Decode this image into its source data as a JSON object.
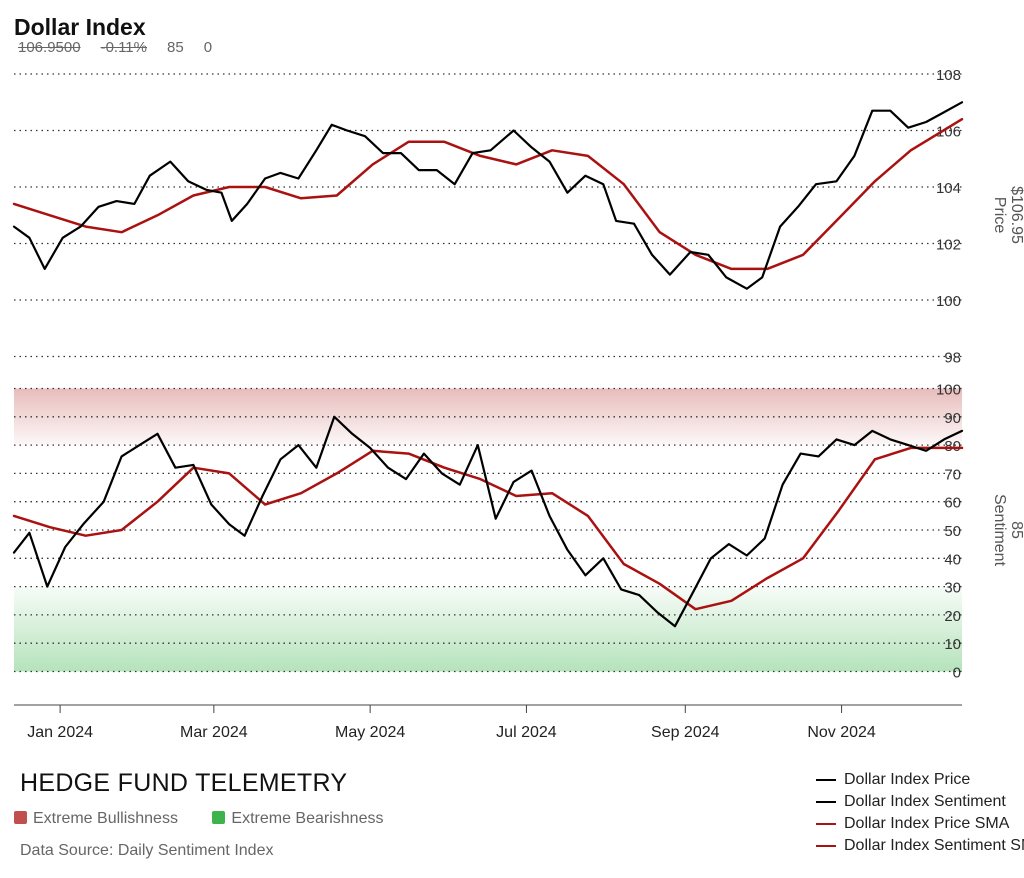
{
  "header": {
    "title": "Dollar Index",
    "price": "106.9500",
    "change": "-0.11%",
    "sentiment": "85",
    "extra": "0"
  },
  "footer": {
    "brand": "HEDGE FUND TELEMETRY",
    "zone_bull": "Extreme Bullishness",
    "zone_bear": "Extreme Bearishness",
    "source": "Data Source: Daily Sentiment Index"
  },
  "colors": {
    "price": "#000000",
    "sma": "#aa1111",
    "bull_zone": "#c0504d",
    "bear_zone": "#3cb44b",
    "grid": "#333333"
  },
  "chart_data": {
    "type": "line",
    "x_ticks": [
      "Jan 2024",
      "Mar 2024",
      "May 2024",
      "Jul 2024",
      "Sep 2024",
      "Nov 2024"
    ],
    "legend": [
      {
        "label": "Dollar Index Price",
        "color": "#000000"
      },
      {
        "label": "Dollar Index Sentiment",
        "color": "#000000"
      },
      {
        "label": "Dollar Index Price SMA",
        "color": "#aa1111"
      },
      {
        "label": "Dollar Index Sentiment SMA",
        "color": "#aa1111"
      }
    ],
    "panels": [
      {
        "name": "price",
        "axis_label": "Price",
        "axis_value": "$106.95",
        "ylim": [
          98,
          108.5
        ],
        "ticks": [
          98,
          100,
          102,
          104,
          106,
          108
        ],
        "price": [
          [
            "2023-12-14",
            102.6
          ],
          [
            "2023-12-20",
            102.2
          ],
          [
            "2023-12-26",
            101.1
          ],
          [
            "2024-01-02",
            102.2
          ],
          [
            "2024-01-09",
            102.6
          ],
          [
            "2024-01-16",
            103.3
          ],
          [
            "2024-01-23",
            103.5
          ],
          [
            "2024-01-30",
            103.4
          ],
          [
            "2024-02-05",
            104.4
          ],
          [
            "2024-02-13",
            104.9
          ],
          [
            "2024-02-20",
            104.2
          ],
          [
            "2024-02-27",
            103.9
          ],
          [
            "2024-03-04",
            103.8
          ],
          [
            "2024-03-08",
            102.8
          ],
          [
            "2024-03-14",
            103.4
          ],
          [
            "2024-03-21",
            104.3
          ],
          [
            "2024-03-27",
            104.5
          ],
          [
            "2024-04-03",
            104.3
          ],
          [
            "2024-04-10",
            105.3
          ],
          [
            "2024-04-16",
            106.2
          ],
          [
            "2024-04-22",
            106.0
          ],
          [
            "2024-04-29",
            105.8
          ],
          [
            "2024-05-06",
            105.2
          ],
          [
            "2024-05-13",
            105.2
          ],
          [
            "2024-05-20",
            104.6
          ],
          [
            "2024-05-27",
            104.6
          ],
          [
            "2024-06-03",
            104.1
          ],
          [
            "2024-06-10",
            105.2
          ],
          [
            "2024-06-17",
            105.3
          ],
          [
            "2024-06-26",
            106.0
          ],
          [
            "2024-07-03",
            105.4
          ],
          [
            "2024-07-10",
            104.9
          ],
          [
            "2024-07-17",
            103.8
          ],
          [
            "2024-07-24",
            104.4
          ],
          [
            "2024-07-31",
            104.1
          ],
          [
            "2024-08-05",
            102.8
          ],
          [
            "2024-08-12",
            102.7
          ],
          [
            "2024-08-19",
            101.6
          ],
          [
            "2024-08-26",
            100.9
          ],
          [
            "2024-09-03",
            101.7
          ],
          [
            "2024-09-10",
            101.6
          ],
          [
            "2024-09-17",
            100.8
          ],
          [
            "2024-09-25",
            100.4
          ],
          [
            "2024-10-01",
            100.8
          ],
          [
            "2024-10-08",
            102.6
          ],
          [
            "2024-10-15",
            103.3
          ],
          [
            "2024-10-22",
            104.1
          ],
          [
            "2024-10-30",
            104.2
          ],
          [
            "2024-11-06",
            105.1
          ],
          [
            "2024-11-13",
            106.7
          ],
          [
            "2024-11-20",
            106.7
          ],
          [
            "2024-11-27",
            106.1
          ],
          [
            "2024-12-04",
            106.3
          ],
          [
            "2024-12-10",
            106.6
          ],
          [
            "2024-12-18",
            107.0
          ]
        ],
        "sma": [
          [
            "2023-12-14",
            103.4
          ],
          [
            "2023-12-28",
            103.0
          ],
          [
            "2024-01-11",
            102.6
          ],
          [
            "2024-01-25",
            102.4
          ],
          [
            "2024-02-08",
            103.0
          ],
          [
            "2024-02-22",
            103.7
          ],
          [
            "2024-03-07",
            104.0
          ],
          [
            "2024-03-21",
            104.0
          ],
          [
            "2024-04-04",
            103.6
          ],
          [
            "2024-04-18",
            103.7
          ],
          [
            "2024-05-02",
            104.8
          ],
          [
            "2024-05-16",
            105.6
          ],
          [
            "2024-05-30",
            105.6
          ],
          [
            "2024-06-13",
            105.1
          ],
          [
            "2024-06-27",
            104.8
          ],
          [
            "2024-07-11",
            105.3
          ],
          [
            "2024-07-25",
            105.1
          ],
          [
            "2024-08-08",
            104.1
          ],
          [
            "2024-08-22",
            102.4
          ],
          [
            "2024-09-05",
            101.6
          ],
          [
            "2024-09-19",
            101.1
          ],
          [
            "2024-10-03",
            101.1
          ],
          [
            "2024-10-17",
            101.6
          ],
          [
            "2024-10-31",
            102.9
          ],
          [
            "2024-11-14",
            104.2
          ],
          [
            "2024-11-28",
            105.3
          ],
          [
            "2024-12-18",
            106.4
          ]
        ]
      },
      {
        "name": "sentiment",
        "axis_label": "Sentiment",
        "axis_value": "85",
        "ylim": [
          -2,
          100
        ],
        "ticks": [
          0,
          10,
          20,
          30,
          40,
          50,
          60,
          70,
          80,
          90,
          100
        ],
        "zones": [
          {
            "range": [
              80,
              100
            ],
            "color": "#c0504d",
            "label": "Extreme Bullishness"
          },
          {
            "range": [
              0,
              30
            ],
            "color": "#3cb44b",
            "label": "Extreme Bearishness"
          }
        ],
        "sentiment": [
          [
            "2023-12-14",
            42
          ],
          [
            "2023-12-20",
            49
          ],
          [
            "2023-12-27",
            30
          ],
          [
            "2024-01-03",
            44
          ],
          [
            "2024-01-10",
            52
          ],
          [
            "2024-01-18",
            60
          ],
          [
            "2024-01-25",
            76
          ],
          [
            "2024-02-01",
            80
          ],
          [
            "2024-02-08",
            84
          ],
          [
            "2024-02-15",
            72
          ],
          [
            "2024-02-22",
            73
          ],
          [
            "2024-02-29",
            59
          ],
          [
            "2024-03-07",
            52
          ],
          [
            "2024-03-13",
            48
          ],
          [
            "2024-03-20",
            62
          ],
          [
            "2024-03-27",
            75
          ],
          [
            "2024-04-03",
            80
          ],
          [
            "2024-04-10",
            72
          ],
          [
            "2024-04-17",
            90
          ],
          [
            "2024-04-24",
            84
          ],
          [
            "2024-05-01",
            79
          ],
          [
            "2024-05-08",
            72
          ],
          [
            "2024-05-15",
            68
          ],
          [
            "2024-05-22",
            77
          ],
          [
            "2024-05-29",
            70
          ],
          [
            "2024-06-05",
            66
          ],
          [
            "2024-06-12",
            80
          ],
          [
            "2024-06-19",
            54
          ],
          [
            "2024-06-26",
            67
          ],
          [
            "2024-07-03",
            71
          ],
          [
            "2024-07-10",
            55
          ],
          [
            "2024-07-17",
            43
          ],
          [
            "2024-07-24",
            34
          ],
          [
            "2024-07-31",
            40
          ],
          [
            "2024-08-07",
            29
          ],
          [
            "2024-08-14",
            27
          ],
          [
            "2024-08-21",
            21
          ],
          [
            "2024-08-28",
            16
          ],
          [
            "2024-09-04",
            28
          ],
          [
            "2024-09-11",
            40
          ],
          [
            "2024-09-18",
            45
          ],
          [
            "2024-09-25",
            41
          ],
          [
            "2024-10-02",
            47
          ],
          [
            "2024-10-09",
            66
          ],
          [
            "2024-10-16",
            77
          ],
          [
            "2024-10-23",
            76
          ],
          [
            "2024-10-30",
            82
          ],
          [
            "2024-11-06",
            80
          ],
          [
            "2024-11-13",
            85
          ],
          [
            "2024-11-20",
            82
          ],
          [
            "2024-11-27",
            80
          ],
          [
            "2024-12-04",
            78
          ],
          [
            "2024-12-11",
            82
          ],
          [
            "2024-12-18",
            85
          ]
        ],
        "sma": [
          [
            "2023-12-14",
            55
          ],
          [
            "2023-12-28",
            51
          ],
          [
            "2024-01-11",
            48
          ],
          [
            "2024-01-25",
            50
          ],
          [
            "2024-02-08",
            60
          ],
          [
            "2024-02-22",
            72
          ],
          [
            "2024-03-07",
            70
          ],
          [
            "2024-03-21",
            59
          ],
          [
            "2024-04-04",
            63
          ],
          [
            "2024-04-18",
            70
          ],
          [
            "2024-05-02",
            78
          ],
          [
            "2024-05-16",
            77
          ],
          [
            "2024-05-30",
            72
          ],
          [
            "2024-06-13",
            68
          ],
          [
            "2024-06-27",
            62
          ],
          [
            "2024-07-11",
            63
          ],
          [
            "2024-07-25",
            55
          ],
          [
            "2024-08-08",
            38
          ],
          [
            "2024-08-22",
            31
          ],
          [
            "2024-09-05",
            22
          ],
          [
            "2024-09-19",
            25
          ],
          [
            "2024-10-03",
            33
          ],
          [
            "2024-10-17",
            40
          ],
          [
            "2024-10-31",
            57
          ],
          [
            "2024-11-14",
            75
          ],
          [
            "2024-11-28",
            79
          ],
          [
            "2024-12-18",
            79
          ]
        ]
      }
    ]
  }
}
